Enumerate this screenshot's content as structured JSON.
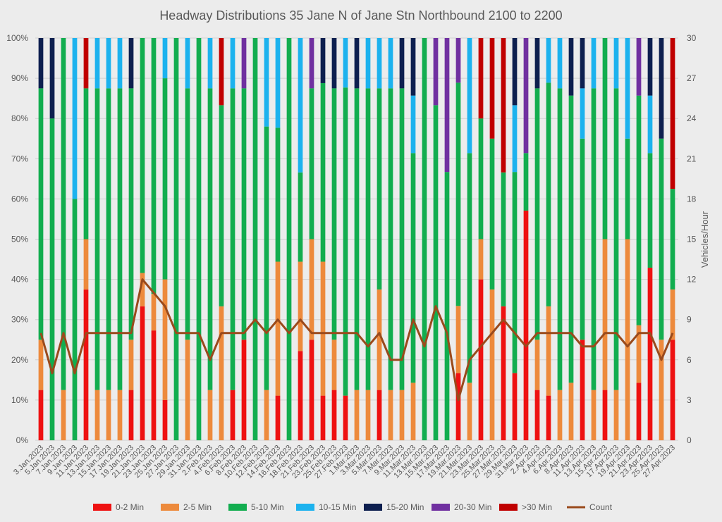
{
  "chart_data": {
    "type": "bar",
    "stacked": true,
    "title": "Headway Distributions 35 Jane  N of Jane Stn Northbound 2100 to 2200",
    "y_left": {
      "min": 0,
      "max": 100,
      "ticks": [
        "0%",
        "10%",
        "20%",
        "30%",
        "40%",
        "50%",
        "60%",
        "70%",
        "80%",
        "90%",
        "100%"
      ]
    },
    "y_right": {
      "label": "Vehicles/Hour",
      "min": 0,
      "max": 30,
      "ticks": [
        "0",
        "3",
        "6",
        "9",
        "12",
        "15",
        "18",
        "21",
        "24",
        "27",
        "30"
      ]
    },
    "grid": true,
    "legend_position": "bottom",
    "x_labels": [
      "3.Jan.2023",
      "5.Jan.2023",
      "7.Jan.2023",
      "9.Jan.2023",
      "11.Jan.2023",
      "13.Jan.2023",
      "15.Jan.2023",
      "17.Jan.2023",
      "19.Jan.2023",
      "21.Jan.2023",
      "23.Jan.2023",
      "25.Jan.2023",
      "27.Jan.2023",
      "29.Jan.2023",
      "31.Jan.2023",
      "2.Feb.2023",
      "4.Feb.2023",
      "6.Feb.2023",
      "8.Feb.2023",
      "10.Feb.2023",
      "12.Feb.2023",
      "14.Feb.2023",
      "16.Feb.2023",
      "18.Feb.2023",
      "21.Feb.2023",
      "23.Feb.2023",
      "25.Feb.2023",
      "27.Feb.2023",
      "1.Mar.2023",
      "3.Mar.2023",
      "5.Mar.2023",
      "7.Mar.2023",
      "9.Mar.2023",
      "11.Mar.2023",
      "13.Mar.2023",
      "15.Mar.2023",
      "17.Mar.2023",
      "19.Mar.2023",
      "21.Mar.2023",
      "23.Mar.2023",
      "25.Mar.2023",
      "27.Mar.2023",
      "29.Mar.2023",
      "31.Mar.2023",
      "2.Apr.2023",
      "4.Apr.2023",
      "6.Apr.2023",
      "8.Apr.2023",
      "11.Apr.2023",
      "13.Apr.2023",
      "15.Apr.2023",
      "17.Apr.2023",
      "19.Apr.2023",
      "21.Apr.2023",
      "23.Apr.2023",
      "25.Apr.2023",
      "27.Apr.2023"
    ],
    "series": [
      {
        "name": "0-2 Min",
        "color": "#ee1111"
      },
      {
        "name": "2-5 Min",
        "color": "#ed8a3c"
      },
      {
        "name": "5-10 Min",
        "color": "#12ad4f"
      },
      {
        "name": "10-15 Min",
        "color": "#1cb2ee"
      },
      {
        "name": "15-20 Min",
        "color": "#0d1f4f"
      },
      {
        "name": "20-30 Min",
        "color": "#7030a0"
      },
      {
        "name": ">30 Min",
        "color": "#c00000"
      },
      {
        "name": "Count",
        "color": "#9a4a1c",
        "type": "line",
        "axis": "right"
      }
    ],
    "bars": [
      [
        12.5,
        12.5,
        62.5,
        0,
        12.5,
        0,
        0
      ],
      [
        0,
        0,
        80,
        0,
        20,
        0,
        0
      ],
      [
        0,
        12.5,
        87.5,
        0,
        0,
        0,
        0
      ],
      [
        0,
        0,
        60,
        40,
        0,
        0,
        0
      ],
      [
        37.5,
        12.5,
        37.5,
        0,
        0,
        0,
        12.5
      ],
      [
        0,
        12.5,
        75,
        12.5,
        0,
        0,
        0
      ],
      [
        0,
        12.5,
        75,
        12.5,
        0,
        0,
        0
      ],
      [
        0,
        12.5,
        75,
        12.5,
        0,
        0,
        0
      ],
      [
        12.5,
        12.5,
        62.5,
        0,
        12.5,
        0,
        0
      ],
      [
        33.3,
        8.3,
        58.4,
        0,
        0,
        0,
        0
      ],
      [
        27.3,
        9.1,
        63.6,
        0,
        0,
        0,
        0
      ],
      [
        10,
        30,
        50,
        10,
        0,
        0,
        0
      ],
      [
        0,
        0,
        100,
        0,
        0,
        0,
        0
      ],
      [
        0,
        25,
        62.5,
        12.5,
        0,
        0,
        0
      ],
      [
        0,
        0,
        100,
        0,
        0,
        0,
        0
      ],
      [
        0,
        12.5,
        75,
        12.5,
        0,
        0,
        0
      ],
      [
        0,
        33.3,
        50,
        0,
        0,
        0,
        16.7
      ],
      [
        12.5,
        0,
        75,
        12.5,
        0,
        0,
        0
      ],
      [
        25,
        0,
        62.5,
        0,
        0,
        12.5,
        0
      ],
      [
        0,
        0,
        100,
        0,
        0,
        0,
        0
      ],
      [
        0,
        12.5,
        65.5,
        22,
        0,
        0,
        0
      ],
      [
        11.1,
        33.3,
        33.3,
        22.3,
        0,
        0,
        0
      ],
      [
        0,
        0,
        100,
        0,
        0,
        0,
        0
      ],
      [
        22.2,
        22.2,
        22.2,
        33.4,
        0,
        0,
        0
      ],
      [
        25,
        25,
        37.5,
        0,
        0,
        12.5,
        0
      ],
      [
        11.1,
        33.3,
        44.4,
        0,
        11.2,
        0,
        0
      ],
      [
        12.5,
        12.5,
        62.5,
        0,
        12.5,
        0,
        0
      ],
      [
        11.1,
        0,
        76.6,
        12.3,
        0,
        0,
        0
      ],
      [
        0,
        12.5,
        75,
        0,
        12.5,
        0,
        0
      ],
      [
        0,
        12.5,
        75,
        12.5,
        0,
        0,
        0
      ],
      [
        12.5,
        25,
        50,
        12.5,
        0,
        0,
        0
      ],
      [
        0,
        12.5,
        75,
        12.5,
        0,
        0,
        0
      ],
      [
        0,
        12.5,
        75,
        0,
        12.5,
        0,
        0
      ],
      [
        0,
        14.3,
        57.1,
        14.3,
        14.3,
        0,
        0
      ],
      [
        0,
        0,
        100,
        0,
        0,
        0,
        0
      ],
      [
        0,
        0,
        83.3,
        0,
        0,
        16.7,
        0
      ],
      [
        0,
        0,
        66.7,
        0,
        0,
        33.3,
        0
      ],
      [
        16.7,
        16.7,
        55.5,
        0,
        0,
        11.1,
        0
      ],
      [
        0,
        14.3,
        57.1,
        28.6,
        0,
        0,
        0
      ],
      [
        40,
        10,
        30,
        0,
        0,
        0,
        20
      ],
      [
        0,
        37.5,
        37.5,
        0,
        0,
        0,
        25
      ],
      [
        33.3,
        0,
        33.3,
        0,
        0,
        0,
        33.4
      ],
      [
        16.7,
        0,
        50,
        16.6,
        16.7,
        0,
        0
      ],
      [
        57.1,
        0,
        14.3,
        0,
        0,
        28.6,
        0
      ],
      [
        12.5,
        12.5,
        62.5,
        0,
        12.5,
        0,
        0
      ],
      [
        11.1,
        22.2,
        55.6,
        11.1,
        0,
        0,
        0
      ],
      [
        0,
        12.5,
        75,
        12.5,
        0,
        0,
        0
      ],
      [
        0,
        14.3,
        71.4,
        0,
        14.3,
        0,
        0
      ],
      [
        25,
        0,
        50,
        12.5,
        12.5,
        0,
        0
      ],
      [
        0,
        12.5,
        75,
        12.5,
        0,
        0,
        0
      ],
      [
        12.5,
        37.5,
        50,
        0,
        0,
        0,
        0
      ],
      [
        0,
        12.5,
        75,
        12.5,
        0,
        0,
        0
      ],
      [
        0,
        50,
        25,
        25,
        0,
        0,
        0
      ],
      [
        14.3,
        14.3,
        57.1,
        0,
        0,
        14.3,
        0
      ],
      [
        42.9,
        0,
        28.5,
        14.3,
        14.3,
        0,
        0
      ],
      [
        0,
        25,
        50,
        0,
        25,
        0,
        0
      ],
      [
        25,
        12.5,
        25,
        0,
        0,
        0,
        37.5
      ]
    ],
    "count": [
      8,
      5,
      8,
      5,
      8,
      8,
      8,
      8,
      8,
      12,
      11,
      10,
      8,
      8,
      8,
      6,
      8,
      8,
      8,
      9,
      8,
      9,
      8,
      9,
      8,
      8,
      8,
      8,
      8,
      7,
      8,
      6,
      6,
      9,
      7,
      10,
      8,
      3,
      6,
      7,
      8,
      9,
      8,
      7,
      8,
      8,
      8,
      8,
      7,
      7,
      8,
      8,
      7,
      8,
      8,
      6,
      8
    ]
  }
}
